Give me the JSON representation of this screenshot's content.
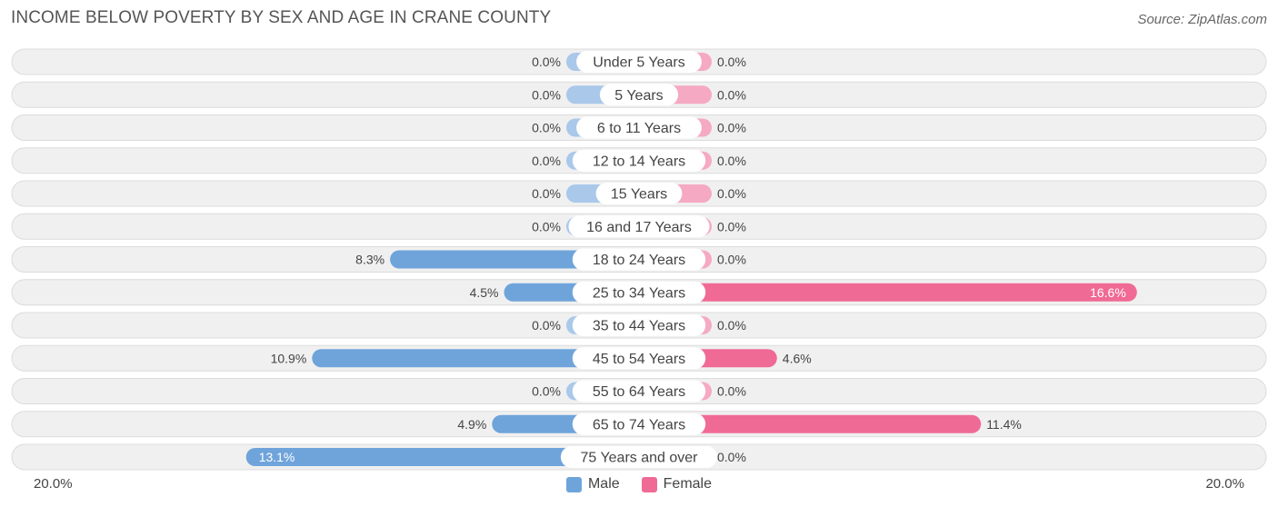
{
  "title": "INCOME BELOW POVERTY BY SEX AND AGE IN CRANE COUNTY",
  "source": "Source: ZipAtlas.com",
  "colors": {
    "male": "#6fa4db",
    "male_light": "#a9c8ea",
    "female": "#f06a96",
    "female_light": "#f5a9c2",
    "row_bg": "#f0f0f0",
    "row_border": "#dcdcdc"
  },
  "legend": {
    "male_label": "Male",
    "female_label": "Female"
  },
  "axis": {
    "left_label": "20.0%",
    "right_label": "20.0%"
  },
  "chart_data": {
    "type": "bar",
    "orientation": "horizontal-diverging",
    "title": "INCOME BELOW POVERTY BY SEX AND AGE IN CRANE COUNTY",
    "categories": [
      "Under 5 Years",
      "5 Years",
      "6 to 11 Years",
      "12 to 14 Years",
      "15 Years",
      "16 and 17 Years",
      "18 to 24 Years",
      "25 to 34 Years",
      "35 to 44 Years",
      "45 to 54 Years",
      "55 to 64 Years",
      "65 to 74 Years",
      "75 Years and over"
    ],
    "series": [
      {
        "name": "Male",
        "values": [
          0.0,
          0.0,
          0.0,
          0.0,
          0.0,
          0.0,
          8.3,
          4.5,
          0.0,
          10.9,
          0.0,
          4.9,
          13.1
        ],
        "labels": [
          "0.0%",
          "0.0%",
          "0.0%",
          "0.0%",
          "0.0%",
          "0.0%",
          "8.3%",
          "4.5%",
          "0.0%",
          "10.9%",
          "0.0%",
          "4.9%",
          "13.1%"
        ]
      },
      {
        "name": "Female",
        "values": [
          0.0,
          0.0,
          0.0,
          0.0,
          0.0,
          0.0,
          0.0,
          16.6,
          0.0,
          4.6,
          0.0,
          11.4,
          0.0
        ],
        "labels": [
          "0.0%",
          "0.0%",
          "0.0%",
          "0.0%",
          "0.0%",
          "0.0%",
          "0.0%",
          "16.6%",
          "0.0%",
          "4.6%",
          "0.0%",
          "11.4%",
          "0.0%"
        ]
      }
    ],
    "xlim": [
      -20,
      20
    ],
    "legend_position": "bottom-center"
  }
}
